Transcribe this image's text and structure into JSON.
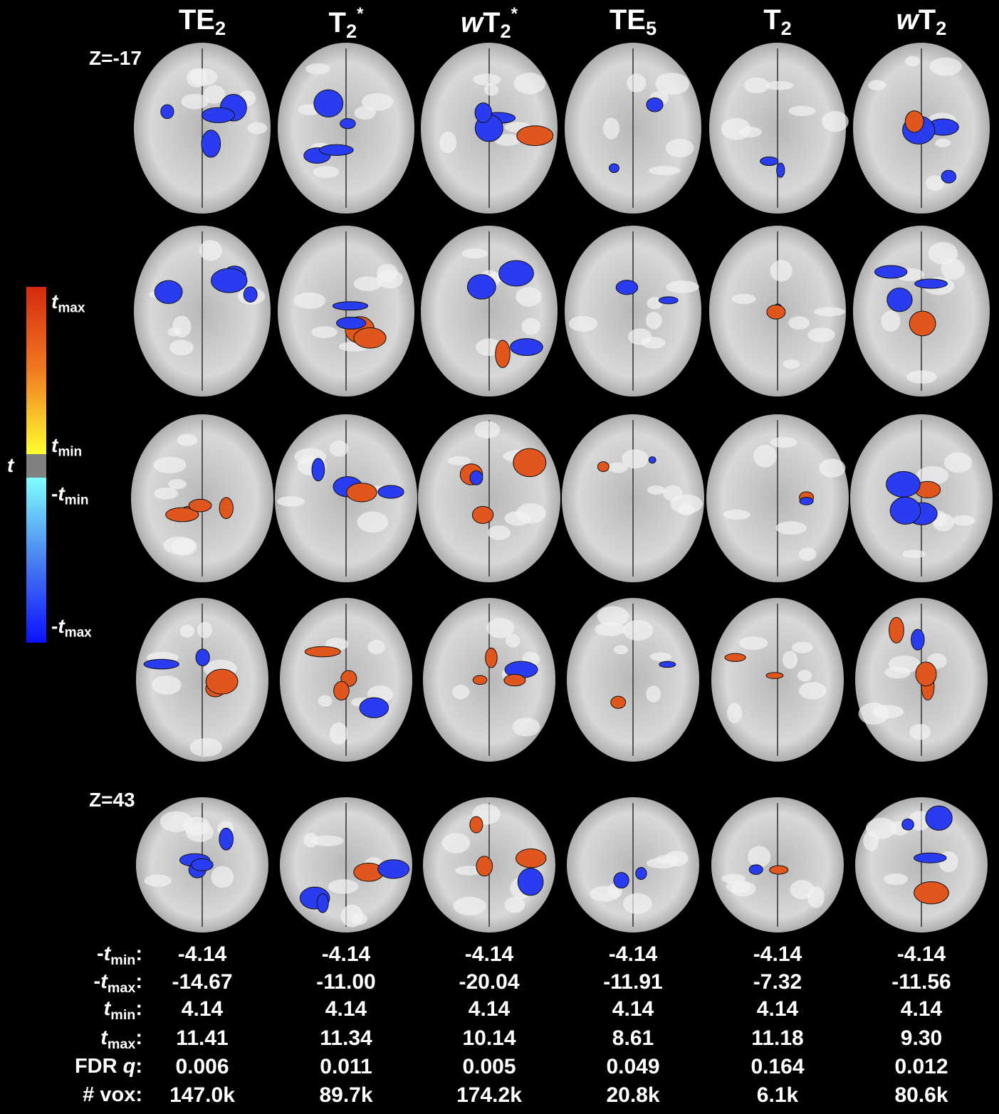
{
  "columns": [
    [
      {
        "text": "TE"
      },
      {
        "text": "2",
        "style": "sub"
      }
    ],
    [
      {
        "text": "T"
      },
      {
        "text": "2",
        "style": "sub"
      },
      {
        "text": "*",
        "style": "sup"
      }
    ],
    [
      {
        "text": "w",
        "style": "italic"
      },
      {
        "text": "T"
      },
      {
        "text": "2",
        "style": "sub"
      },
      {
        "text": "*",
        "style": "sup"
      }
    ],
    [
      {
        "text": "TE"
      },
      {
        "text": "5",
        "style": "sub"
      }
    ],
    [
      {
        "text": "T"
      },
      {
        "text": "2",
        "style": "sub"
      }
    ],
    [
      {
        "text": "w",
        "style": "italic"
      },
      {
        "text": "T"
      },
      {
        "text": "2",
        "style": "sub"
      }
    ]
  ],
  "slice_labels": [
    "Z=-17",
    "Z=43"
  ],
  "colorbar": {
    "axis_label": "t",
    "labels": [
      [
        {
          "text": "t",
          "style": "italic"
        },
        {
          "text": "max",
          "style": "sub"
        }
      ],
      [
        {
          "text": "t",
          "style": "italic"
        },
        {
          "text": "min",
          "style": "sub"
        }
      ],
      [
        {
          "text": "-"
        },
        {
          "text": "t",
          "style": "italic"
        },
        {
          "text": "min",
          "style": "sub"
        }
      ],
      [
        {
          "text": "-"
        },
        {
          "text": "t",
          "style": "italic"
        },
        {
          "text": "max",
          "style": "sub"
        }
      ]
    ]
  },
  "stats": [
    {
      "label": [
        {
          "text": "-"
        },
        {
          "text": "t",
          "style": "italic"
        },
        {
          "text": "min",
          "style": "sub"
        },
        {
          "text": ":"
        }
      ],
      "values": [
        "-4.14",
        "-4.14",
        "-4.14",
        "-4.14",
        "-4.14",
        "-4.14"
      ]
    },
    {
      "label": [
        {
          "text": "-"
        },
        {
          "text": "t",
          "style": "italic"
        },
        {
          "text": "max",
          "style": "sub"
        },
        {
          "text": ":"
        }
      ],
      "values": [
        "-14.67",
        "-11.00",
        "-20.04",
        "-11.91",
        "-7.32",
        "-11.56"
      ]
    },
    {
      "label": [
        {
          "text": "t",
          "style": "italic"
        },
        {
          "text": "min",
          "style": "sub"
        },
        {
          "text": ":"
        }
      ],
      "values": [
        "4.14",
        "4.14",
        "4.14",
        "4.14",
        "4.14",
        "4.14"
      ]
    },
    {
      "label": [
        {
          "text": "t",
          "style": "italic"
        },
        {
          "text": "max",
          "style": "sub"
        },
        {
          "text": ":"
        }
      ],
      "values": [
        "11.41",
        "11.34",
        "10.14",
        "8.61",
        "11.18",
        "9.30"
      ]
    },
    {
      "label": [
        {
          "text": "FDR "
        },
        {
          "text": "q",
          "style": "italic"
        },
        {
          "text": ":"
        }
      ],
      "values": [
        "0.006",
        "0.011",
        "0.005",
        "0.049",
        "0.164",
        "0.012"
      ]
    },
    {
      "label": [
        {
          "text": "# vox:"
        }
      ],
      "values": [
        "147.0k",
        "89.7k",
        "174.2k",
        "20.8k",
        "6.1k",
        "80.6k"
      ]
    }
  ]
}
